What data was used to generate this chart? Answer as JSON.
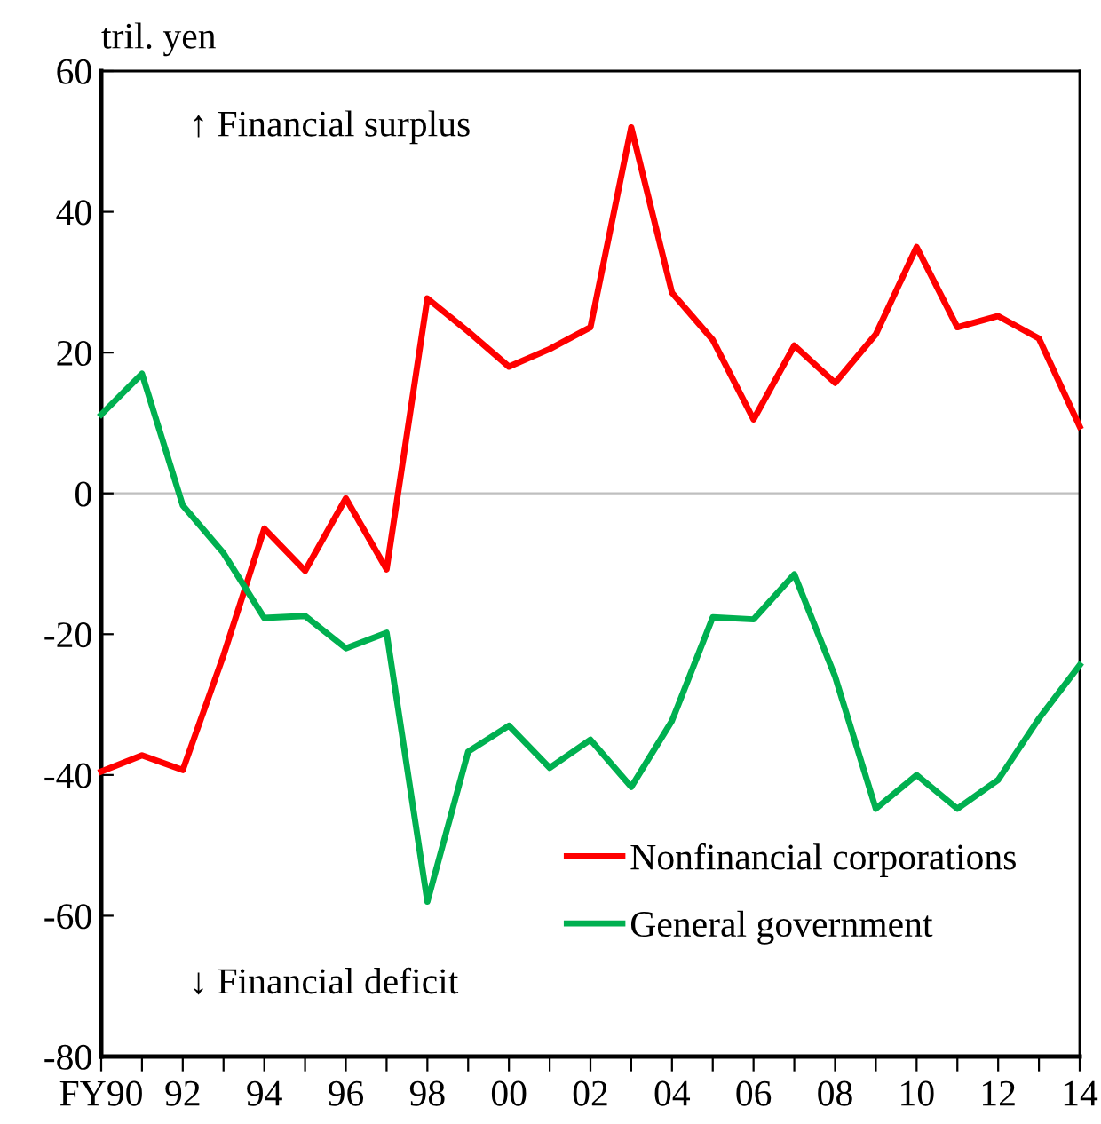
{
  "chart_data": {
    "type": "line",
    "ylabel": "tril. yen",
    "x": [
      1990,
      1991,
      1992,
      1993,
      1994,
      1995,
      1996,
      1997,
      1998,
      1999,
      2000,
      2001,
      2002,
      2003,
      2004,
      2005,
      2006,
      2007,
      2008,
      2009,
      2010,
      2011,
      2012,
      2013,
      2014
    ],
    "series": [
      {
        "name": "Nonfinancial corporations",
        "color": "#ff0000",
        "values": [
          -39.5,
          -37.2,
          -39.3,
          -23,
          -5,
          -11,
          -0.7,
          -10.8,
          27.7,
          23,
          18,
          20.5,
          23.6,
          52,
          28.5,
          21.8,
          10.5,
          21,
          15.7,
          22.6,
          35,
          23.6,
          25.2,
          22,
          9.5
        ]
      },
      {
        "name": "General government",
        "color": "#00b050",
        "values": [
          11.2,
          17,
          -1.7,
          -8.5,
          -17.7,
          -17.4,
          -22,
          -19.8,
          -58,
          -36.7,
          -33,
          -39,
          -35,
          -41.7,
          -32.3,
          -17.6,
          -17.9,
          -11.5,
          -26,
          -44.8,
          -40,
          -44.8,
          -40.7,
          -32,
          -24.4
        ]
      }
    ],
    "xlim": [
      1990,
      2014
    ],
    "xticks": [
      {
        "value": 1990,
        "label": "FY90"
      },
      {
        "value": 1991,
        "label": null
      },
      {
        "value": 1992,
        "label": "92"
      },
      {
        "value": 1993,
        "label": null
      },
      {
        "value": 1994,
        "label": "94"
      },
      {
        "value": 1995,
        "label": null
      },
      {
        "value": 1996,
        "label": "96"
      },
      {
        "value": 1997,
        "label": null
      },
      {
        "value": 1998,
        "label": "98"
      },
      {
        "value": 1999,
        "label": null
      },
      {
        "value": 2000,
        "label": "00"
      },
      {
        "value": 2001,
        "label": null
      },
      {
        "value": 2002,
        "label": "02"
      },
      {
        "value": 2003,
        "label": null
      },
      {
        "value": 2004,
        "label": "04"
      },
      {
        "value": 2005,
        "label": null
      },
      {
        "value": 2006,
        "label": "06"
      },
      {
        "value": 2007,
        "label": null
      },
      {
        "value": 2008,
        "label": "08"
      },
      {
        "value": 2009,
        "label": null
      },
      {
        "value": 2010,
        "label": "10"
      },
      {
        "value": 2011,
        "label": null
      },
      {
        "value": 2012,
        "label": "12"
      },
      {
        "value": 2013,
        "label": null
      },
      {
        "value": 2014,
        "label": "14"
      }
    ],
    "ylim": [
      -80,
      60
    ],
    "yticks": [
      -80,
      -60,
      -40,
      -20,
      0,
      20,
      40,
      60
    ],
    "ref_lines": [
      {
        "axis": "y",
        "value": 0,
        "color": "#bfbfbf"
      }
    ],
    "annotations": [
      "↑ Financial surplus",
      "↓ Financial deficit"
    ],
    "legend": "bottom right",
    "grid": false,
    "marker": "none",
    "line_style": "solid"
  }
}
